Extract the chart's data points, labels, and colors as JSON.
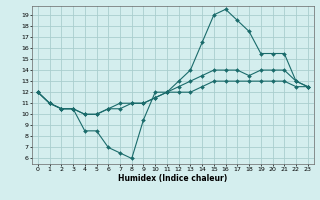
{
  "title": "",
  "xlabel": "Humidex (Indice chaleur)",
  "xlim": [
    -0.5,
    23.5
  ],
  "ylim": [
    5.5,
    19.8
  ],
  "xticks": [
    0,
    1,
    2,
    3,
    4,
    5,
    6,
    7,
    8,
    9,
    10,
    11,
    12,
    13,
    14,
    15,
    16,
    17,
    18,
    19,
    20,
    21,
    22,
    23
  ],
  "yticks": [
    6,
    7,
    8,
    9,
    10,
    11,
    12,
    13,
    14,
    15,
    16,
    17,
    18,
    19
  ],
  "bg_color": "#d4eeee",
  "grid_color": "#aacece",
  "line_color": "#1a6b6b",
  "line1_x": [
    0,
    1,
    2,
    3,
    4,
    5,
    6,
    7,
    8,
    9,
    10,
    11,
    12,
    13,
    14,
    15,
    16,
    17,
    18,
    19,
    20,
    21,
    22,
    23
  ],
  "line1_y": [
    12,
    11,
    10.5,
    10.5,
    8.5,
    8.5,
    7.0,
    6.5,
    6.0,
    9.5,
    12.0,
    12.0,
    13.0,
    14.0,
    16.5,
    19.0,
    19.5,
    18.5,
    17.5,
    15.5,
    15.5,
    15.5,
    13.0,
    12.5
  ],
  "line2_x": [
    0,
    1,
    2,
    3,
    4,
    5,
    6,
    7,
    8,
    9,
    10,
    11,
    12,
    13,
    14,
    15,
    16,
    17,
    18,
    19,
    20,
    21,
    22,
    23
  ],
  "line2_y": [
    12,
    11,
    10.5,
    10.5,
    10.0,
    10.0,
    10.5,
    11.0,
    11.0,
    11.0,
    11.5,
    12.0,
    12.5,
    13.0,
    13.5,
    14.0,
    14.0,
    14.0,
    13.5,
    14.0,
    14.0,
    14.0,
    13.0,
    12.5
  ],
  "line3_x": [
    0,
    1,
    2,
    3,
    4,
    5,
    6,
    7,
    8,
    9,
    10,
    11,
    12,
    13,
    14,
    15,
    16,
    17,
    18,
    19,
    20,
    21,
    22,
    23
  ],
  "line3_y": [
    12,
    11,
    10.5,
    10.5,
    10.0,
    10.0,
    10.5,
    10.5,
    11.0,
    11.0,
    11.5,
    12.0,
    12.0,
    12.0,
    12.5,
    13.0,
    13.0,
    13.0,
    13.0,
    13.0,
    13.0,
    13.0,
    12.5,
    12.5
  ]
}
